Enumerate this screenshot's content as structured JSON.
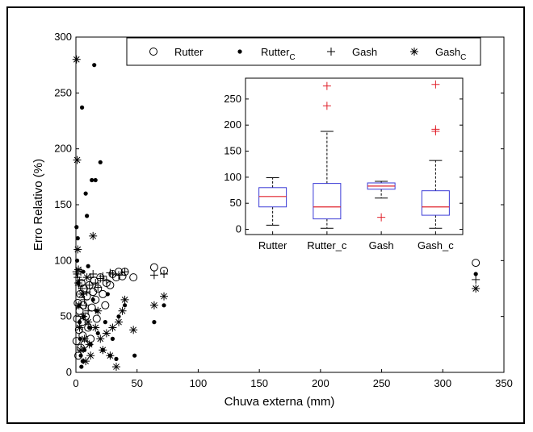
{
  "chart_data": [
    {
      "type": "scatter",
      "xlabel": "Chuva externa (mm)",
      "ylabel": "Erro Relativo (%)",
      "xlim": [
        0,
        350
      ],
      "ylim": [
        0,
        300
      ],
      "xticks": [
        "0",
        "50",
        "100",
        "150",
        "200",
        "250",
        "300",
        "350"
      ],
      "yticks": [
        "0",
        "50",
        "100",
        "150",
        "200",
        "250",
        "300"
      ],
      "legend": {
        "placement": "top",
        "entries": [
          {
            "label": "Rutter",
            "marker": "circle"
          },
          {
            "label": "Rutter",
            "sub": "C",
            "marker": "dot"
          },
          {
            "label": "Gash",
            "marker": "plus"
          },
          {
            "label": "Gash",
            "sub": "C",
            "marker": "asterisk"
          }
        ]
      },
      "series": [
        {
          "name": "Rutter",
          "marker": "circle",
          "points": [
            [
              0.5,
              28
            ],
            [
              1,
              48
            ],
            [
              1.5,
              62
            ],
            [
              2,
              15
            ],
            [
              2.5,
              38
            ],
            [
              3,
              55
            ],
            [
              3.5,
              70
            ],
            [
              4,
              22
            ],
            [
              4.5,
              80
            ],
            [
              5,
              45
            ],
            [
              5.5,
              33
            ],
            [
              6,
              60
            ],
            [
              6.5,
              75
            ],
            [
              7,
              25
            ],
            [
              8,
              50
            ],
            [
              9,
              68
            ],
            [
              10,
              40
            ],
            [
              11,
              78
            ],
            [
              12,
              30
            ],
            [
              13,
              58
            ],
            [
              14,
              72
            ],
            [
              15,
              82
            ],
            [
              16,
              65
            ],
            [
              17,
              48
            ],
            [
              18,
              75
            ],
            [
              20,
              85
            ],
            [
              22,
              70
            ],
            [
              24,
              60
            ],
            [
              25,
              80
            ],
            [
              28,
              78
            ],
            [
              30,
              88
            ],
            [
              33,
              85
            ],
            [
              35,
              90
            ],
            [
              38,
              86
            ],
            [
              40,
              90
            ],
            [
              47,
              85
            ],
            [
              64,
              94
            ],
            [
              72,
              91
            ],
            [
              327,
              98
            ]
          ]
        },
        {
          "name": "Rutter_c",
          "marker": "dot",
          "points": [
            [
              0.5,
              130
            ],
            [
              1,
              100
            ],
            [
              1.5,
              120
            ],
            [
              2,
              80
            ],
            [
              2.5,
              60
            ],
            [
              3,
              45
            ],
            [
              3.5,
              30
            ],
            [
              4,
              15
            ],
            [
              4.5,
              5
            ],
            [
              5,
              237
            ],
            [
              5.5,
              10
            ],
            [
              6,
              90
            ],
            [
              6.5,
              50
            ],
            [
              7,
              20
            ],
            [
              8,
              160
            ],
            [
              9,
              140
            ],
            [
              10,
              95
            ],
            [
              11,
              40
            ],
            [
              12,
              25
            ],
            [
              13,
              172
            ],
            [
              14,
              65
            ],
            [
              15,
              275
            ],
            [
              16,
              172
            ],
            [
              17,
              55
            ],
            [
              18,
              35
            ],
            [
              20,
              188
            ],
            [
              22,
              20
            ],
            [
              24,
              45
            ],
            [
              26,
              70
            ],
            [
              28,
              15
            ],
            [
              30,
              30
            ],
            [
              33,
              12
            ],
            [
              35,
              50
            ],
            [
              40,
              60
            ],
            [
              48,
              15
            ],
            [
              64,
              45
            ],
            [
              72,
              60
            ],
            [
              327,
              88
            ]
          ]
        },
        {
          "name": "Gash",
          "marker": "plus",
          "points": [
            [
              0.5,
              90
            ],
            [
              1,
              88
            ],
            [
              1.5,
              85
            ],
            [
              2,
              80
            ],
            [
              2.5,
              78
            ],
            [
              3,
              82
            ],
            [
              4,
              90
            ],
            [
              5,
              75
            ],
            [
              6,
              70
            ],
            [
              7,
              65
            ],
            [
              8,
              60
            ],
            [
              9,
              72
            ],
            [
              10,
              55
            ],
            [
              11,
              78
            ],
            [
              12,
              85
            ],
            [
              14,
              88
            ],
            [
              16,
              80
            ],
            [
              18,
              76
            ],
            [
              20,
              84
            ],
            [
              22,
              86
            ],
            [
              25,
              82
            ],
            [
              28,
              89
            ],
            [
              30,
              88
            ],
            [
              35,
              87
            ],
            [
              40,
              90
            ],
            [
              64,
              87
            ],
            [
              72,
              88
            ],
            [
              327,
              83
            ]
          ]
        },
        {
          "name": "Gash_c",
          "marker": "asterisk",
          "points": [
            [
              0.5,
              280
            ],
            [
              1,
              190
            ],
            [
              1.5,
              110
            ],
            [
              2,
              92
            ],
            [
              2.5,
              60
            ],
            [
              3,
              40
            ],
            [
              4,
              20
            ],
            [
              5,
              70
            ],
            [
              6,
              50
            ],
            [
              7,
              30
            ],
            [
              8,
              10
            ],
            [
              9,
              85
            ],
            [
              10,
              45
            ],
            [
              11,
              25
            ],
            [
              12,
              15
            ],
            [
              14,
              122
            ],
            [
              16,
              40
            ],
            [
              18,
              55
            ],
            [
              20,
              30
            ],
            [
              22,
              20
            ],
            [
              25,
              35
            ],
            [
              28,
              15
            ],
            [
              30,
              40
            ],
            [
              33,
              5
            ],
            [
              35,
              45
            ],
            [
              38,
              55
            ],
            [
              40,
              65
            ],
            [
              47,
              38
            ],
            [
              64,
              60
            ],
            [
              72,
              68
            ],
            [
              327,
              75
            ]
          ]
        }
      ]
    },
    {
      "type": "box",
      "categories": [
        "Rutter",
        "Rutter_c",
        "Gash",
        "Gash_c"
      ],
      "ylim": [
        -10,
        290
      ],
      "yticks": [
        "0",
        "50",
        "100",
        "150",
        "200",
        "250"
      ],
      "boxes": [
        {
          "min": 8,
          "q1": 43,
          "median": 63,
          "q3": 80,
          "max": 99,
          "outliers": []
        },
        {
          "min": 2,
          "q1": 20,
          "median": 43,
          "q3": 88,
          "max": 188,
          "outliers": [
            237,
            275
          ]
        },
        {
          "min": 60,
          "q1": 77,
          "median": 83,
          "q3": 89,
          "max": 92,
          "outliers": [
            23
          ]
        },
        {
          "min": 2,
          "q1": 27,
          "median": 43,
          "q3": 74,
          "max": 132,
          "outliers": [
            188,
            192,
            278
          ]
        }
      ],
      "colors": {
        "box": "#3b3bd6",
        "median": "#e0202a",
        "outlier": "#e0202a"
      }
    }
  ]
}
